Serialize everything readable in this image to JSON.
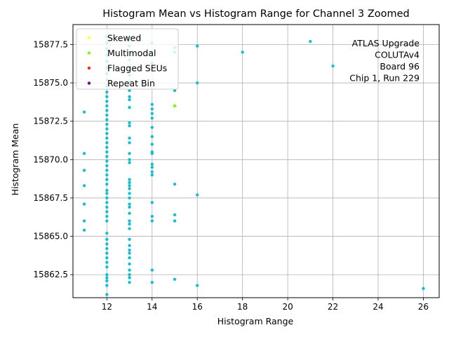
{
  "chart_data": {
    "type": "scatter",
    "title": "Histogram Mean vs Histogram Range for Channel 3 Zoomed",
    "xlabel": "Histogram Range",
    "ylabel": "Histogram Mean",
    "xlim": [
      10.5,
      26.7
    ],
    "ylim": [
      15861.0,
      15878.8
    ],
    "xticks": [
      12,
      14,
      16,
      18,
      20,
      22,
      24,
      26
    ],
    "yticks": [
      15862.5,
      15865.0,
      15867.5,
      15870.0,
      15872.5,
      15875.0,
      15877.5
    ],
    "xtick_labels": [
      "12",
      "14",
      "16",
      "18",
      "20",
      "22",
      "24",
      "26"
    ],
    "ytick_labels": [
      "15862.5",
      "15865.0",
      "15867.5",
      "15870.0",
      "15872.5",
      "15875.0",
      "15877.5"
    ],
    "grid": true,
    "legend_position": "top-left",
    "legend": [
      {
        "name": "Skewed",
        "color": "#ffff33"
      },
      {
        "name": "Multimodal",
        "color": "#7fff00"
      },
      {
        "name": "Flagged SEUs",
        "color": "#ff2222"
      },
      {
        "name": "Repeat Bin",
        "color": "#800080"
      }
    ],
    "annotation": [
      "ATLAS Upgrade",
      "COLUTAv4",
      "Board 96",
      "Chip 1, Run 229"
    ],
    "point_color": "#17becf",
    "series": [
      {
        "name": "",
        "color": "#17becf",
        "points": [
          [
            11,
            15873.1
          ],
          [
            11,
            15870.4
          ],
          [
            11,
            15869.3
          ],
          [
            11,
            15868.3
          ],
          [
            11,
            15867.1
          ],
          [
            11,
            15866.0
          ],
          [
            11,
            15865.4
          ],
          [
            12,
            15861.2
          ],
          [
            12,
            15861.8
          ],
          [
            12,
            15862.1
          ],
          [
            12,
            15862.3
          ],
          [
            12,
            15862.5
          ],
          [
            12,
            15863.0
          ],
          [
            12,
            15863.3
          ],
          [
            12,
            15863.6
          ],
          [
            12,
            15863.9
          ],
          [
            12,
            15864.2
          ],
          [
            12,
            15864.5
          ],
          [
            12,
            15864.8
          ],
          [
            12,
            15865.2
          ],
          [
            12,
            15866.0
          ],
          [
            12,
            15866.3
          ],
          [
            12,
            15866.6
          ],
          [
            12,
            15866.9
          ],
          [
            12,
            15867.2
          ],
          [
            12,
            15867.5
          ],
          [
            12,
            15867.8
          ],
          [
            12,
            15868.0
          ],
          [
            12,
            15868.4
          ],
          [
            12,
            15868.7
          ],
          [
            12,
            15869.0
          ],
          [
            12,
            15869.3
          ],
          [
            12,
            15869.6
          ],
          [
            12,
            15869.9
          ],
          [
            12,
            15870.2
          ],
          [
            12,
            15870.5
          ],
          [
            12,
            15870.8
          ],
          [
            12,
            15871.1
          ],
          [
            12,
            15871.4
          ],
          [
            12,
            15871.7
          ],
          [
            12,
            15872.0
          ],
          [
            12,
            15872.3
          ],
          [
            12,
            15872.6
          ],
          [
            12,
            15872.9
          ],
          [
            12,
            15873.2
          ],
          [
            12,
            15873.5
          ],
          [
            12,
            15873.8
          ],
          [
            12,
            15874.1
          ],
          [
            12,
            15874.4
          ],
          [
            12,
            15874.8
          ],
          [
            12,
            15875.2
          ],
          [
            12,
            15875.6
          ],
          [
            12,
            15876.0
          ],
          [
            12,
            15876.4
          ],
          [
            12,
            15876.8
          ],
          [
            12,
            15877.2
          ],
          [
            12,
            15877.6
          ],
          [
            12,
            15878.0
          ],
          [
            13,
            15862.0
          ],
          [
            13,
            15862.3
          ],
          [
            13,
            15862.5
          ],
          [
            13,
            15862.8
          ],
          [
            13,
            15863.2
          ],
          [
            13,
            15863.6
          ],
          [
            13,
            15863.9
          ],
          [
            13,
            15864.1
          ],
          [
            13,
            15864.4
          ],
          [
            13,
            15864.8
          ],
          [
            13,
            15865.5
          ],
          [
            13,
            15865.8
          ],
          [
            13,
            15866.0
          ],
          [
            13,
            15866.5
          ],
          [
            13,
            15866.9
          ],
          [
            13,
            15867.1
          ],
          [
            13,
            15867.5
          ],
          [
            13,
            15867.8
          ],
          [
            13,
            15868.1
          ],
          [
            13,
            15868.3
          ],
          [
            13,
            15868.5
          ],
          [
            13,
            15868.7
          ],
          [
            13,
            15869.8
          ],
          [
            13,
            15870.0
          ],
          [
            13,
            15870.4
          ],
          [
            13,
            15871.1
          ],
          [
            13,
            15871.4
          ],
          [
            13,
            15872.2
          ],
          [
            13,
            15872.4
          ],
          [
            13,
            15873.4
          ],
          [
            13,
            15873.9
          ],
          [
            13,
            15874.1
          ],
          [
            13,
            15874.5
          ],
          [
            13,
            15875.0
          ],
          [
            13,
            15875.5
          ],
          [
            13,
            15876.0
          ],
          [
            13,
            15876.5
          ],
          [
            13,
            15877.0
          ],
          [
            13,
            15877.4
          ],
          [
            13,
            15877.8
          ],
          [
            13,
            15878.0
          ],
          [
            14,
            15862.0
          ],
          [
            14,
            15862.8
          ],
          [
            14,
            15866.0
          ],
          [
            14,
            15866.3
          ],
          [
            14,
            15867.2
          ],
          [
            14,
            15869.0
          ],
          [
            14,
            15869.2
          ],
          [
            14,
            15869.5
          ],
          [
            14,
            15869.7
          ],
          [
            14,
            15870.4
          ],
          [
            14,
            15870.5
          ],
          [
            14,
            15871.0
          ],
          [
            14,
            15871.5
          ],
          [
            14,
            15872.1
          ],
          [
            14,
            15872.7
          ],
          [
            14,
            15873.0
          ],
          [
            14,
            15873.3
          ],
          [
            14,
            15873.6
          ],
          [
            14,
            15876.3
          ],
          [
            14,
            15877.0
          ],
          [
            14,
            15877.6
          ],
          [
            15,
            15862.2
          ],
          [
            15,
            15866.0
          ],
          [
            15,
            15866.4
          ],
          [
            15,
            15868.4
          ],
          [
            15,
            15873.5
          ],
          [
            15,
            15874.5
          ],
          [
            15,
            15877.0
          ],
          [
            15,
            15877.3
          ],
          [
            16,
            15861.8
          ],
          [
            16,
            15867.7
          ],
          [
            16,
            15875.0
          ],
          [
            16,
            15877.4
          ],
          [
            18,
            15877.0
          ],
          [
            21,
            15877.7
          ],
          [
            22,
            15876.1
          ],
          [
            26,
            15861.6
          ]
        ]
      },
      {
        "name": "Multimodal",
        "color": "#7fff00",
        "points": [
          [
            15,
            15873.5
          ]
        ]
      }
    ]
  }
}
